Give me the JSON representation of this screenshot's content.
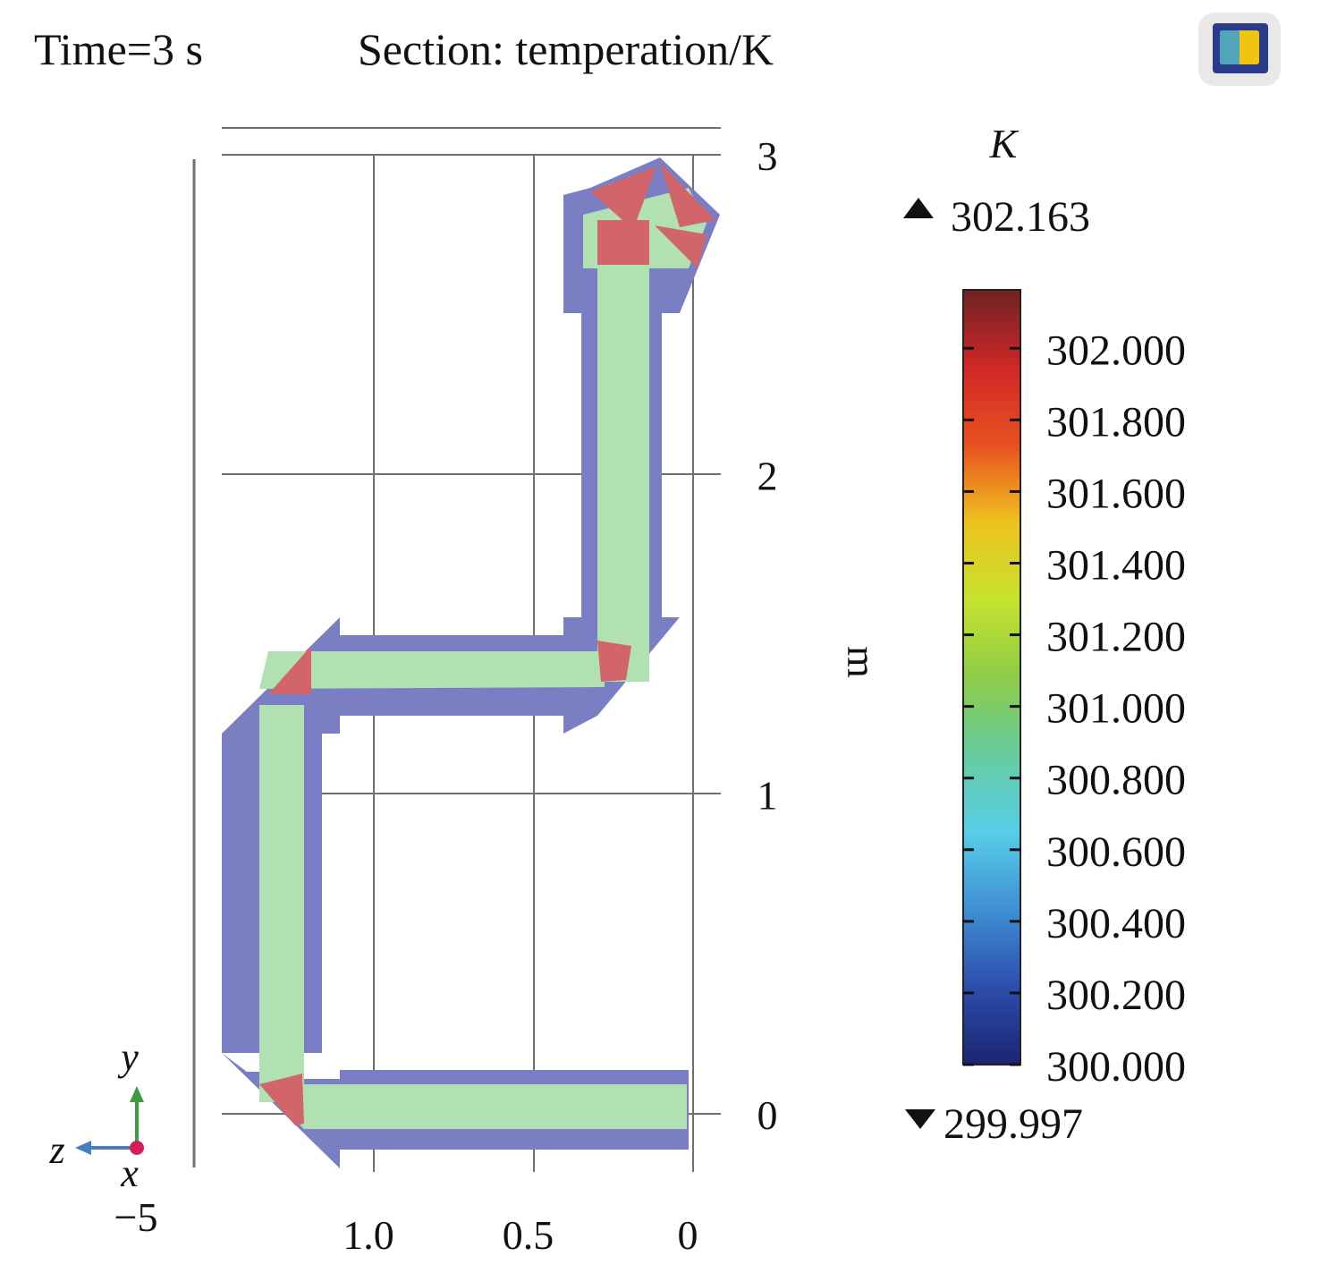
{
  "header": {
    "time_label": "Time=3 s",
    "section_label": "Section: temperation/K"
  },
  "toolbar": {
    "icon": "colormap-box-icon"
  },
  "chart_data": {
    "type": "heatmap",
    "title": "Section: temperation/K",
    "x": {
      "ticks": [
        1.0,
        0.5,
        0
      ],
      "tick_labels": [
        "1.0",
        "0.5",
        "0"
      ],
      "direction": "reversed"
    },
    "y": {
      "ticks": [
        3,
        2,
        1,
        0
      ],
      "tick_labels": [
        "3",
        "2",
        "1",
        "0"
      ],
      "unit_label": "m"
    },
    "colorbar": {
      "unit": "K",
      "max_label": "302.163",
      "min_label": "299.997",
      "ticks": [
        302.0,
        301.8,
        301.6,
        301.4,
        301.2,
        301.0,
        300.8,
        300.6,
        300.4,
        300.2,
        300.0
      ],
      "tick_labels": [
        "302.000",
        "301.800",
        "301.600",
        "301.400",
        "301.200",
        "301.000",
        "300.800",
        "300.600",
        "300.400",
        "300.200",
        "300.000"
      ],
      "range": [
        300.0,
        302.163
      ],
      "colormap": [
        "#1c2470",
        "#2d4dab",
        "#3f8fd4",
        "#58cde9",
        "#67cc9f",
        "#8ccc47",
        "#c6e22e",
        "#eec21f",
        "#e8511f",
        "#d02727",
        "#6e2323"
      ]
    },
    "field": {
      "pipe_core_value": 301.05,
      "pipe_wall_value": 300.3,
      "hot_spot_value": 301.95,
      "colors": {
        "core": "#b1e1b3",
        "wall": "#7a7fc3",
        "hot": "#d2646c"
      }
    },
    "axes_triad": {
      "y_label": "y",
      "z_label": "z",
      "x_label": "x",
      "offset_label": "−5"
    }
  }
}
